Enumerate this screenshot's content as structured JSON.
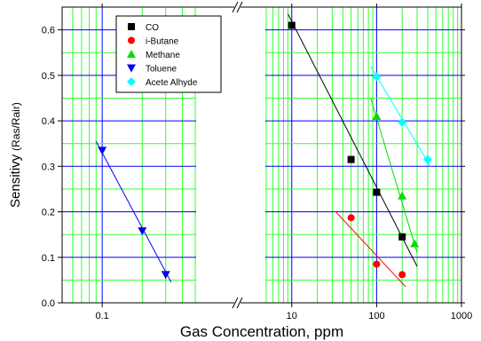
{
  "chart_data": {
    "type": "scatter",
    "title": "",
    "xlabel": "Gas Concentration, ppm",
    "ylabel": "Sensitivy",
    "ylabel_units": "(Ras/Rair)",
    "x_scale": "log",
    "x_axis_break": true,
    "x_segments": [
      {
        "range": [
          0.05,
          0.5
        ],
        "ticks": [
          "0.1"
        ]
      },
      {
        "range": [
          5,
          1000
        ],
        "ticks": [
          "10",
          "100",
          "1000"
        ]
      }
    ],
    "ylim": [
      0.0,
      0.65
    ],
    "yticks": [
      "0.0",
      "0.1",
      "0.2",
      "0.3",
      "0.4",
      "0.5",
      "0.6"
    ],
    "grid": true,
    "grid_color": "#33ff33",
    "legend_position": "top-left",
    "series": [
      {
        "name": "CO",
        "color": "#000000",
        "marker": "square",
        "points": [
          [
            10,
            0.61
          ],
          [
            50,
            0.315
          ],
          [
            100,
            0.243
          ],
          [
            200,
            0.145
          ]
        ],
        "fit_line": [
          [
            9,
            0.635
          ],
          [
            300,
            0.08
          ]
        ]
      },
      {
        "name": "i-Butane",
        "color": "#ff0000",
        "marker": "circle",
        "points": [
          [
            50,
            0.187
          ],
          [
            100,
            0.085
          ],
          [
            200,
            0.062
          ]
        ],
        "fit_line": [
          [
            33,
            0.2
          ],
          [
            220,
            0.035
          ]
        ]
      },
      {
        "name": "Methane",
        "color": "#00dd00",
        "marker": "triangle-up",
        "points": [
          [
            100,
            0.41
          ],
          [
            200,
            0.235
          ],
          [
            280,
            0.13
          ]
        ],
        "fit_line": [
          [
            85,
            0.45
          ],
          [
            300,
            0.11
          ]
        ]
      },
      {
        "name": "Toluene",
        "color": "#0000ee",
        "marker": "triangle-down",
        "points": [
          [
            0.1,
            0.335
          ],
          [
            0.2,
            0.158
          ],
          [
            0.3,
            0.062
          ]
        ],
        "fit_line": [
          [
            0.09,
            0.355
          ],
          [
            0.33,
            0.045
          ]
        ]
      },
      {
        "name": "Acete Alhyde",
        "color": "#00ffff",
        "marker": "diamond",
        "points": [
          [
            100,
            0.497
          ],
          [
            200,
            0.397
          ],
          [
            400,
            0.315
          ]
        ],
        "fit_line": [
          [
            85,
            0.52
          ],
          [
            430,
            0.3
          ]
        ]
      }
    ]
  }
}
